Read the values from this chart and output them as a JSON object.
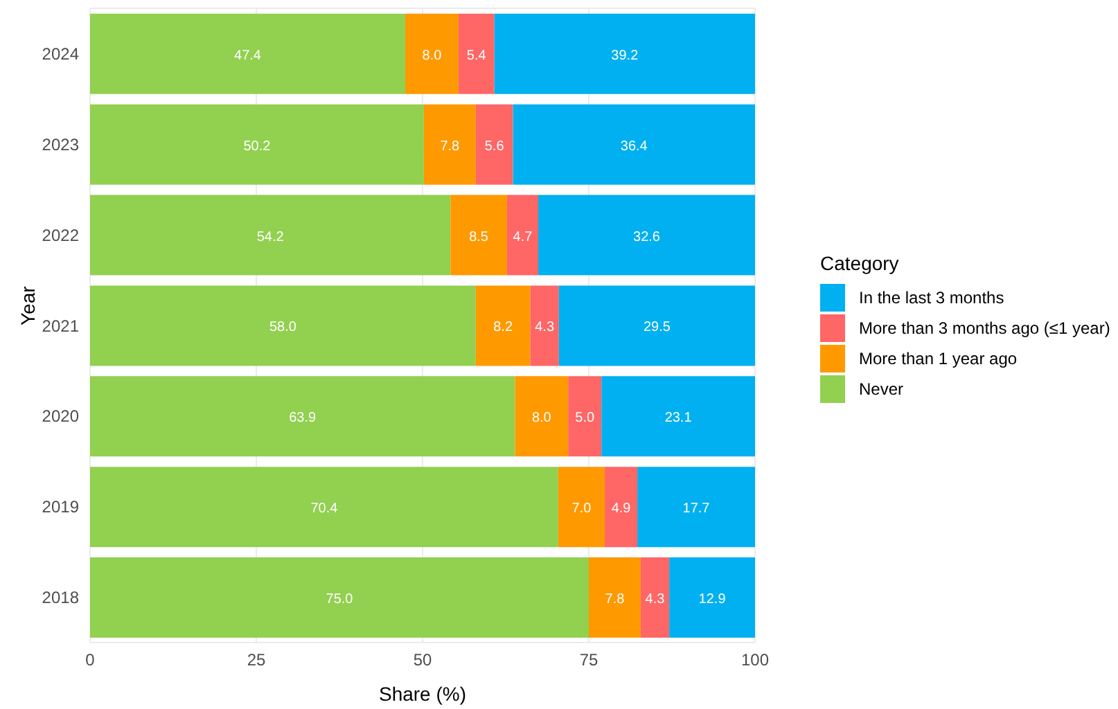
{
  "chart_data": {
    "type": "bar",
    "orientation": "horizontal",
    "stacked": true,
    "xlabel": "Share (%)",
    "ylabel": "Year",
    "legend_title": "Category",
    "legend": "right",
    "grid": true,
    "categories": [
      "2024",
      "2023",
      "2022",
      "2021",
      "2020",
      "2019",
      "2018"
    ],
    "xlim": [
      0,
      100
    ],
    "xticks": [
      0,
      25,
      50,
      75,
      100
    ],
    "series": [
      {
        "name": "Never",
        "color": "#92d050",
        "values": [
          47.4,
          50.2,
          54.2,
          58.0,
          63.9,
          70.4,
          75.0
        ],
        "value_labels": [
          "47.4",
          "50.2",
          "54.2",
          "58.0",
          "63.9",
          "70.4",
          "75.0"
        ]
      },
      {
        "name": "More than 1 year ago",
        "color": "#ff9900",
        "values": [
          8.0,
          7.8,
          8.5,
          8.2,
          8.0,
          7.0,
          7.8
        ],
        "value_labels": [
          "8.0",
          "7.8",
          "8.5",
          "8.2",
          "8.0",
          "7.0",
          "7.8"
        ]
      },
      {
        "name": "More than 3 months ago (≤1 year)",
        "color": "#ff6666",
        "values": [
          5.4,
          5.6,
          4.7,
          4.3,
          5.0,
          4.9,
          4.3
        ],
        "value_labels": [
          "5.4",
          "5.6",
          "4.7",
          "4.3",
          "5.0",
          "4.9",
          "4.3"
        ]
      },
      {
        "name": "In the last 3 months",
        "color": "#00b0f0",
        "values": [
          39.2,
          36.4,
          32.6,
          29.5,
          23.1,
          17.7,
          12.9
        ],
        "value_labels": [
          "39.2",
          "36.4",
          "32.6",
          "29.5",
          "23.1",
          "17.7",
          "12.9"
        ]
      }
    ]
  }
}
